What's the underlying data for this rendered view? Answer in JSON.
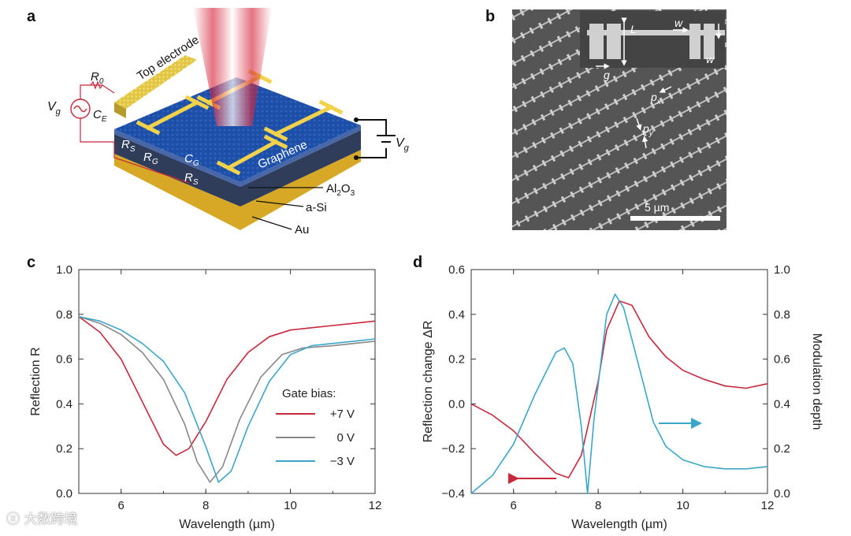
{
  "panels": {
    "a": "a",
    "b": "b",
    "c": "c",
    "d": "d"
  },
  "device": {
    "top_electrode": "Top electrode",
    "graphene": "Graphene",
    "layer_al2o3": "Al2O3",
    "layer_asi": "a-Si",
    "layer_au": "Au",
    "vg_left": "V",
    "vg_left_sub": "g",
    "vg_right": "V",
    "vg_right_sub": "g",
    "r0": "R",
    "r0_sub": "0",
    "ce": "C",
    "ce_sub": "E",
    "rs1": "R",
    "rs1_sub": "S",
    "rg": "R",
    "rg_sub": "G",
    "cg": "C",
    "cg_sub": "G",
    "rs2": "R",
    "rs2_sub": "S"
  },
  "sem": {
    "L": "L",
    "w1": "w",
    "w2": "w",
    "g": "g",
    "px": "p",
    "px_sub": "x",
    "py": "p",
    "py_sub": "y",
    "scale": "5 µm"
  },
  "chart_data": [
    {
      "type": "line",
      "panel": "c",
      "xlabel": "Wavelength (µm)",
      "ylabel": "Reflection R",
      "xlim": [
        5,
        12
      ],
      "ylim": [
        0,
        1.0
      ],
      "xticks": [
        "6",
        "8",
        "10",
        "12"
      ],
      "yticks": [
        "0.0",
        "0.2",
        "0.4",
        "0.6",
        "0.8",
        "1.0"
      ],
      "legend_title": "Gate bias:",
      "legend_position": "center-right",
      "series": [
        {
          "name": "+7 V",
          "color": "#c8283c",
          "x": [
            5.0,
            5.5,
            6.0,
            6.5,
            7.0,
            7.3,
            7.6,
            8.0,
            8.5,
            9.0,
            9.5,
            10.0,
            10.5,
            11.0,
            11.5,
            12.0
          ],
          "y": [
            0.79,
            0.72,
            0.6,
            0.41,
            0.22,
            0.17,
            0.2,
            0.32,
            0.51,
            0.63,
            0.7,
            0.73,
            0.74,
            0.75,
            0.76,
            0.77
          ]
        },
        {
          "name": "0 V",
          "color": "#888888",
          "x": [
            5.0,
            5.5,
            6.0,
            6.5,
            7.0,
            7.5,
            7.8,
            8.1,
            8.4,
            8.8,
            9.3,
            9.8,
            10.3,
            11.0,
            11.5,
            12.0
          ],
          "y": [
            0.79,
            0.76,
            0.71,
            0.63,
            0.51,
            0.31,
            0.14,
            0.05,
            0.12,
            0.33,
            0.52,
            0.62,
            0.65,
            0.66,
            0.67,
            0.68
          ]
        },
        {
          "name": "−3 V",
          "color": "#3ba6c9",
          "x": [
            5.0,
            5.5,
            6.0,
            6.5,
            7.0,
            7.5,
            8.0,
            8.3,
            8.6,
            9.0,
            9.5,
            10.0,
            10.5,
            11.0,
            11.5,
            12.0
          ],
          "y": [
            0.79,
            0.77,
            0.73,
            0.67,
            0.59,
            0.45,
            0.21,
            0.05,
            0.1,
            0.3,
            0.5,
            0.62,
            0.66,
            0.67,
            0.68,
            0.69
          ]
        }
      ]
    },
    {
      "type": "line",
      "panel": "d",
      "xlabel": "Wavelength (µm)",
      "ylabel": "Reflection change ΔR",
      "y2label": "Modulation depth",
      "xlim": [
        5,
        12
      ],
      "ylim": [
        -0.4,
        0.6
      ],
      "y2lim": [
        0,
        1.0
      ],
      "xticks": [
        "6",
        "8",
        "10",
        "12"
      ],
      "yticks": [
        "−0.4",
        "−0.2",
        "0.0",
        "0.2",
        "0.4",
        "0.6"
      ],
      "y2ticks": [
        "0.0",
        "0.2",
        "0.4",
        "0.6",
        "0.8",
        "1.0"
      ],
      "series": [
        {
          "name": "",
          "axis": "left",
          "color": "#c8283c",
          "x": [
            5.0,
            5.5,
            6.0,
            6.5,
            7.0,
            7.3,
            7.6,
            8.0,
            8.2,
            8.5,
            8.8,
            9.2,
            9.6,
            10.0,
            10.5,
            11.0,
            11.5,
            12.0
          ],
          "y": [
            0.0,
            -0.05,
            -0.12,
            -0.22,
            -0.31,
            -0.33,
            -0.23,
            0.1,
            0.33,
            0.46,
            0.44,
            0.3,
            0.21,
            0.15,
            0.11,
            0.08,
            0.07,
            0.09
          ]
        },
        {
          "name": "",
          "axis": "right",
          "color": "#3ba6c9",
          "x": [
            5.0,
            5.5,
            6.0,
            6.5,
            7.0,
            7.2,
            7.4,
            7.6,
            7.75,
            7.9,
            8.2,
            8.4,
            8.6,
            9.0,
            9.3,
            9.6,
            10.0,
            10.5,
            11.0,
            11.5,
            12.0
          ],
          "y": [
            0.0,
            0.08,
            0.22,
            0.44,
            0.63,
            0.65,
            0.58,
            0.3,
            0.0,
            0.33,
            0.8,
            0.89,
            0.83,
            0.54,
            0.32,
            0.21,
            0.15,
            0.12,
            0.11,
            0.11,
            0.12
          ]
        }
      ]
    }
  ]
}
